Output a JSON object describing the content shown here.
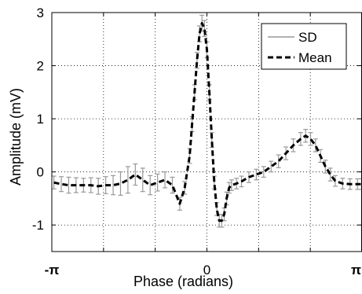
{
  "chart_data": {
    "type": "line",
    "title": "",
    "xlabel": "Phase (radians)",
    "ylabel": "Amplitude (mV)",
    "xlim": [
      -3.14159,
      3.14159
    ],
    "ylim": [
      -1.5,
      3
    ],
    "x_ticks": [
      {
        "value": -3.14159,
        "label": "-π",
        "bold": true
      },
      {
        "value": -2.0944,
        "label": ""
      },
      {
        "value": -1.0472,
        "label": ""
      },
      {
        "value": 0,
        "label": "0",
        "bold": false
      },
      {
        "value": 1.0472,
        "label": ""
      },
      {
        "value": 2.0944,
        "label": ""
      },
      {
        "value": 3.14159,
        "label": "π",
        "bold": true
      }
    ],
    "y_ticks": [
      {
        "value": -1,
        "label": "-1"
      },
      {
        "value": 0,
        "label": "0"
      },
      {
        "value": 1,
        "label": "1"
      },
      {
        "value": 2,
        "label": "2"
      },
      {
        "value": 3,
        "label": "3"
      }
    ],
    "grid": true,
    "legend": {
      "position": "top-right",
      "entries": [
        {
          "label": "SD",
          "style": "solid-gray"
        },
        {
          "label": "Mean",
          "style": "dashed-black"
        }
      ]
    },
    "colors": {
      "sd": "#999999",
      "mean": "#000000",
      "grid": "#000000"
    },
    "series": [
      {
        "name": "Mean",
        "x": [
          -3.1,
          -2.95,
          -2.8,
          -2.65,
          -2.5,
          -2.35,
          -2.2,
          -2.05,
          -1.9,
          -1.75,
          -1.6,
          -1.45,
          -1.3,
          -1.15,
          -1.0,
          -0.85,
          -0.7,
          -0.55,
          -0.45,
          -0.35,
          -0.3,
          -0.25,
          -0.2,
          -0.15,
          -0.1,
          -0.05,
          0.0,
          0.05,
          0.1,
          0.15,
          0.2,
          0.25,
          0.3,
          0.35,
          0.4,
          0.45,
          0.5,
          0.6,
          0.7,
          0.85,
          1.0,
          1.15,
          1.3,
          1.45,
          1.6,
          1.75,
          1.9,
          2.0,
          2.1,
          2.2,
          2.3,
          2.4,
          2.5,
          2.6,
          2.75,
          2.9,
          3.05,
          3.14
        ],
        "y": [
          -0.2,
          -0.23,
          -0.25,
          -0.25,
          -0.25,
          -0.25,
          -0.27,
          -0.25,
          -0.25,
          -0.22,
          -0.15,
          -0.05,
          -0.15,
          -0.25,
          -0.2,
          -0.15,
          -0.25,
          -0.6,
          -0.3,
          0.3,
          0.9,
          1.5,
          2.1,
          2.6,
          2.8,
          2.7,
          2.3,
          1.5,
          0.6,
          -0.2,
          -0.7,
          -0.92,
          -0.92,
          -0.8,
          -0.5,
          -0.3,
          -0.25,
          -0.22,
          -0.18,
          -0.1,
          -0.05,
          0.0,
          0.1,
          0.2,
          0.35,
          0.5,
          0.62,
          0.68,
          0.62,
          0.5,
          0.3,
          0.1,
          -0.05,
          -0.17,
          -0.22,
          -0.23,
          -0.23,
          -0.23
        ]
      },
      {
        "name": "SD",
        "x": [
          -3.1,
          -2.95,
          -2.8,
          -2.65,
          -2.5,
          -2.35,
          -2.2,
          -2.05,
          -1.9,
          -1.75,
          -1.6,
          -1.45,
          -1.3,
          -1.15,
          -1.0,
          -0.85,
          -0.7,
          -0.55,
          -0.45,
          -0.35,
          -0.3,
          -0.25,
          -0.2,
          -0.15,
          -0.1,
          -0.05,
          0.0,
          0.05,
          0.1,
          0.15,
          0.2,
          0.25,
          0.3,
          0.35,
          0.4,
          0.45,
          0.5,
          0.6,
          0.7,
          0.85,
          1.0,
          1.15,
          1.3,
          1.45,
          1.6,
          1.75,
          1.9,
          2.0,
          2.1,
          2.2,
          2.3,
          2.4,
          2.5,
          2.6,
          2.75,
          2.9,
          3.05,
          3.14
        ],
        "err": [
          0.12,
          0.14,
          0.15,
          0.14,
          0.13,
          0.14,
          0.15,
          0.16,
          0.18,
          0.22,
          0.25,
          0.2,
          0.22,
          0.18,
          0.16,
          0.15,
          0.15,
          0.12,
          0.12,
          0.14,
          0.14,
          0.14,
          0.15,
          0.15,
          0.15,
          0.15,
          0.15,
          0.14,
          0.14,
          0.12,
          0.12,
          0.12,
          0.12,
          0.12,
          0.12,
          0.1,
          0.1,
          0.1,
          0.1,
          0.1,
          0.1,
          0.1,
          0.1,
          0.12,
          0.12,
          0.12,
          0.12,
          0.12,
          0.12,
          0.12,
          0.12,
          0.12,
          0.12,
          0.1,
          0.1,
          0.1,
          0.1,
          0.1
        ]
      }
    ]
  }
}
